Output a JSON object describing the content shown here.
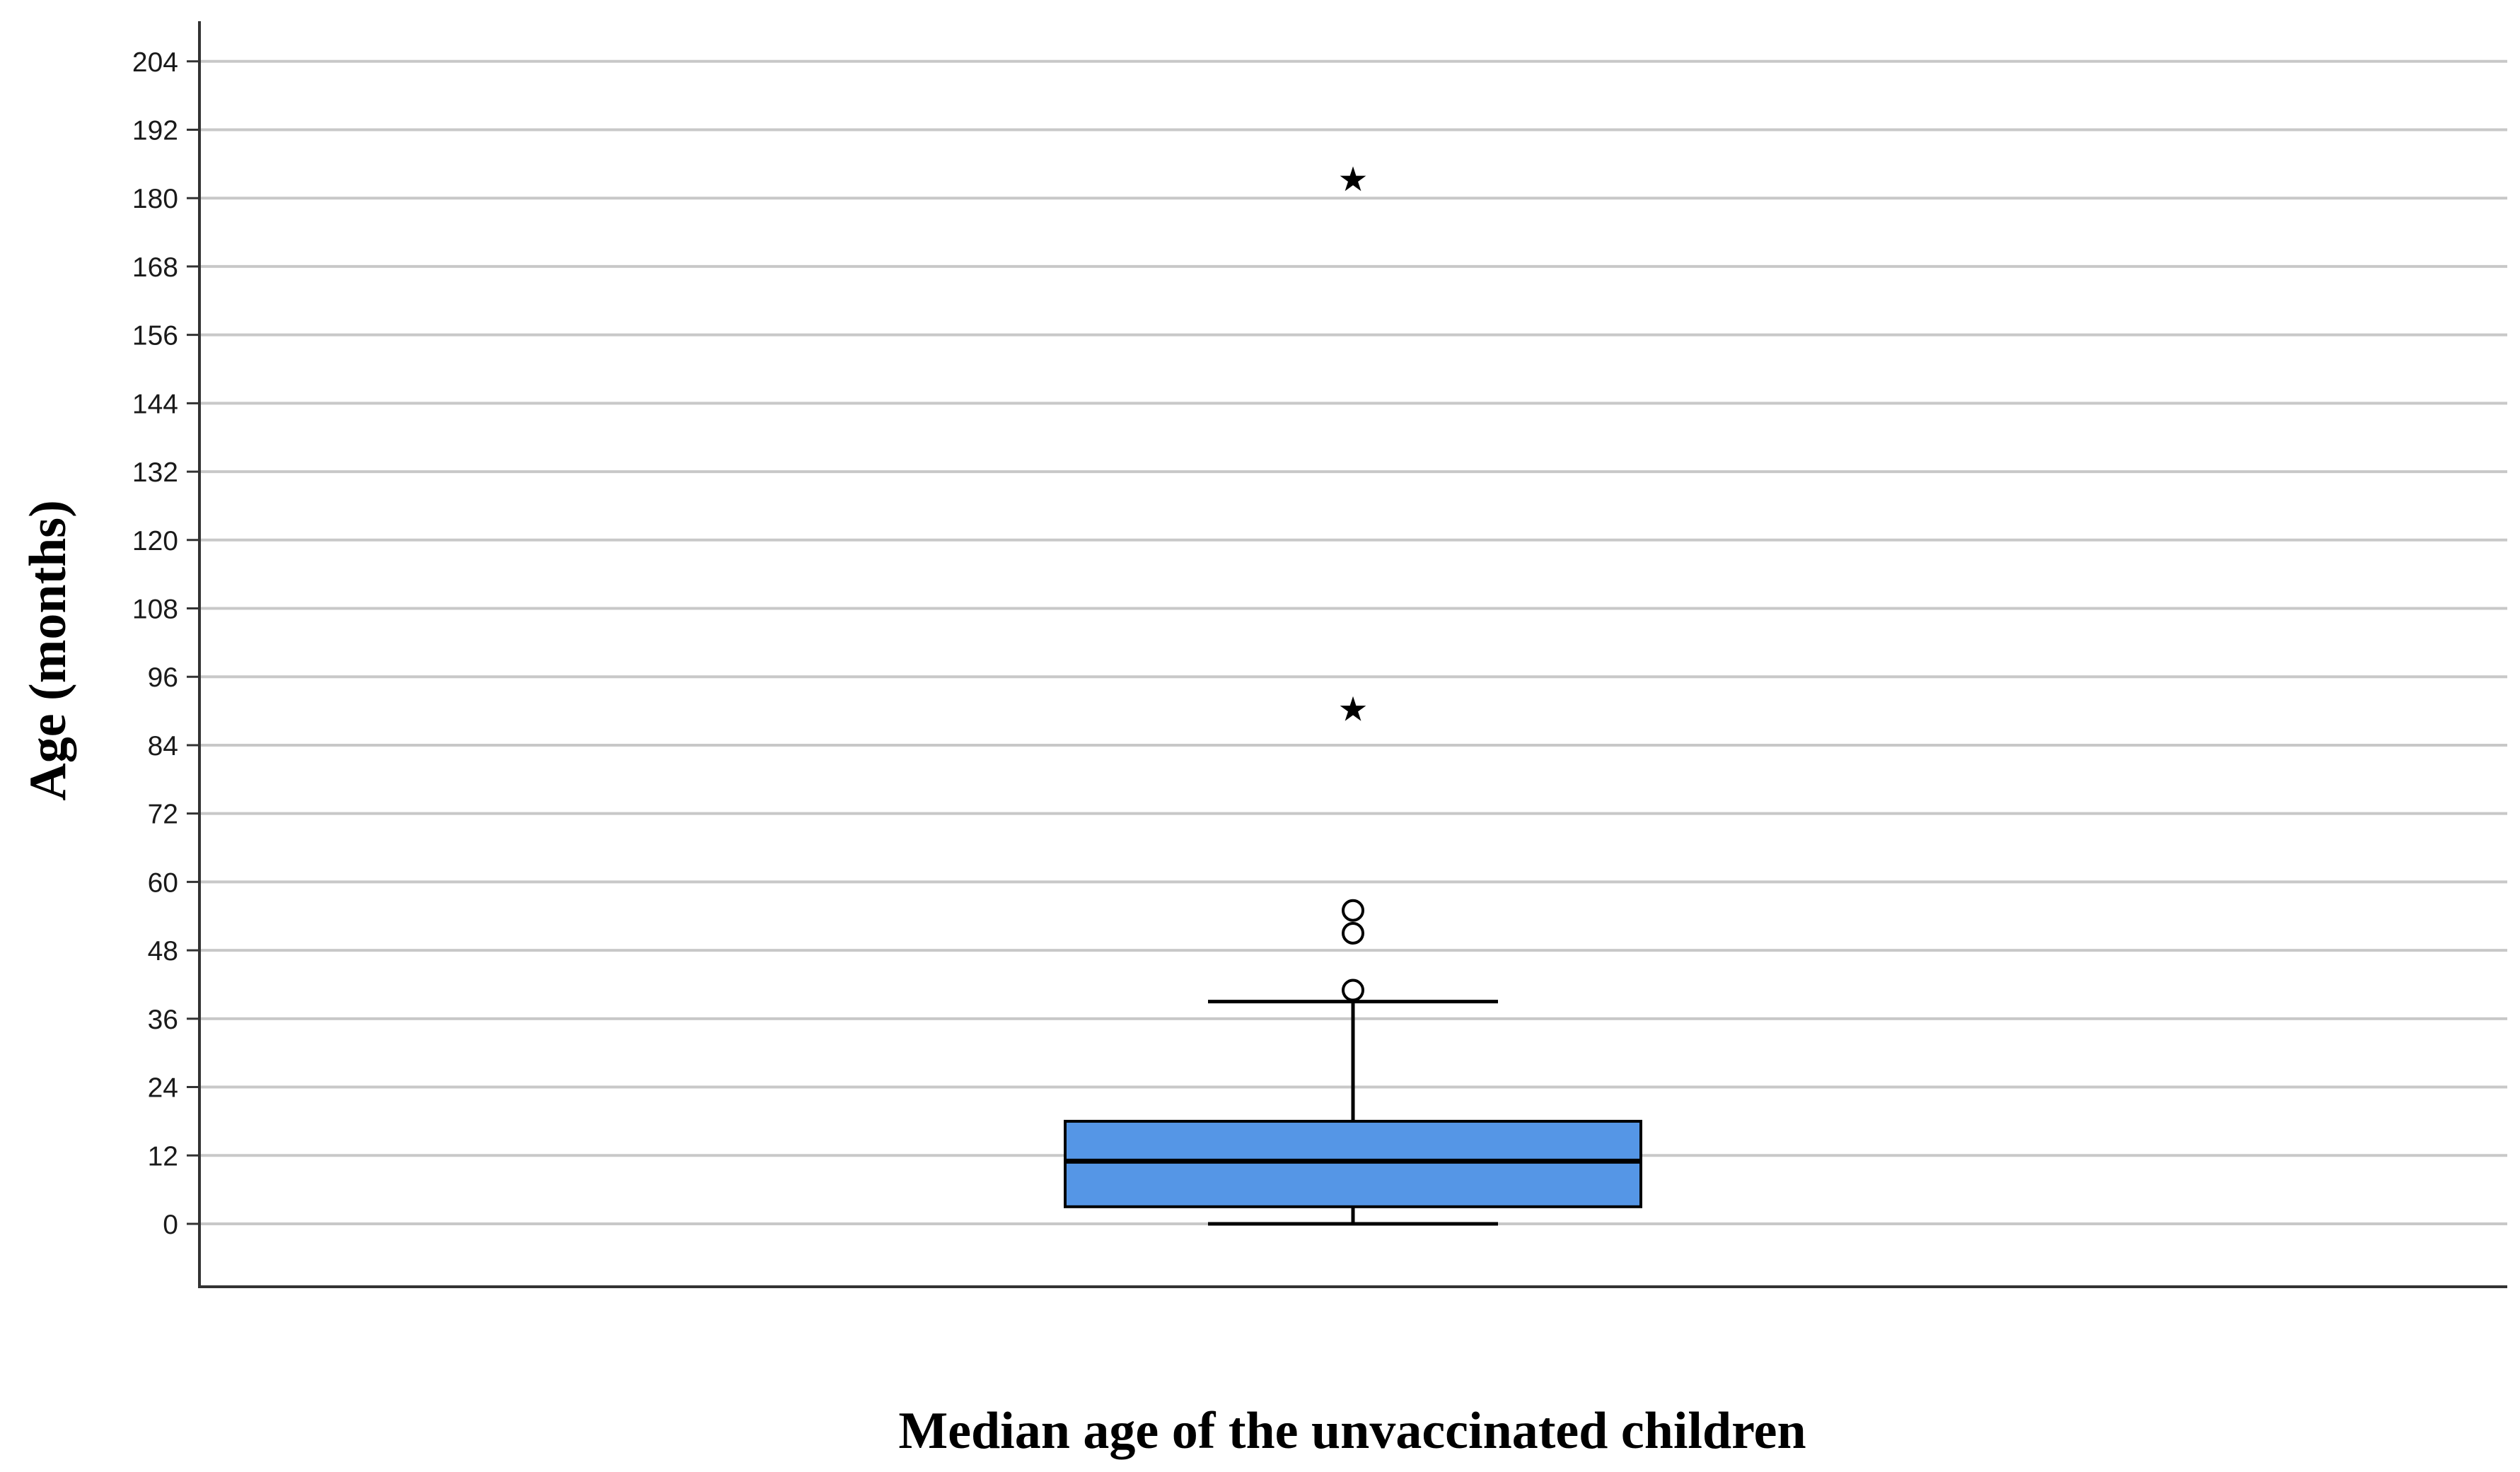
{
  "chart_data": {
    "type": "box",
    "xlabel": "Median age of the unvaccinated children",
    "ylabel": "Age (months)",
    "ylim": [
      -11,
      214
    ],
    "yticks": [
      0,
      12,
      24,
      36,
      48,
      60,
      72,
      84,
      96,
      108,
      120,
      132,
      144,
      156,
      168,
      180,
      192,
      204
    ],
    "grid": true,
    "box": {
      "whisker_low": 0,
      "q1": 3,
      "median": 11,
      "q3": 18,
      "whisker_high": 39
    },
    "outliers": [
      41,
      51,
      55
    ],
    "extremes": [
      91,
      184
    ],
    "box_color": "#5596E6",
    "grid_color": "#C8C8C8",
    "outlier_marker": "circle",
    "extreme_marker": "★"
  }
}
